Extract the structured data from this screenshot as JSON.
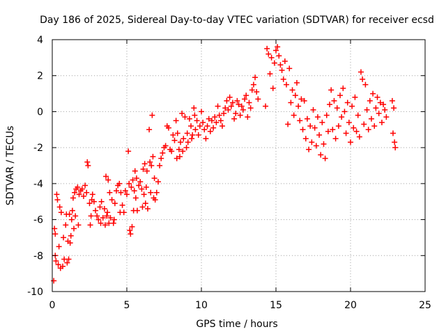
{
  "chart_data": {
    "type": "scatter",
    "title": "Day 186 of 2025, Sidereal Day-to-day VTEC variation (SDTVAR) for receiver ecsd",
    "xlabel": "GPS time / hours",
    "ylabel": "SDTVAR / TECUs",
    "xlim": [
      0,
      25
    ],
    "ylim": [
      -10,
      4
    ],
    "xticks": [
      0,
      5,
      10,
      15,
      20,
      25
    ],
    "yticks": [
      -10,
      -8,
      -6,
      -4,
      -2,
      0,
      2,
      4
    ],
    "grid": true,
    "marker": "plus",
    "marker_color": "#ff0000",
    "grid_color": "#a0a0a0",
    "series": [
      {
        "name": "SDTVAR",
        "points": [
          [
            0.1,
            -9.4
          ],
          [
            0.15,
            -6.5
          ],
          [
            0.2,
            -6.8
          ],
          [
            0.2,
            -8.0
          ],
          [
            0.25,
            -8.3
          ],
          [
            0.3,
            -4.6
          ],
          [
            0.35,
            -4.9
          ],
          [
            0.4,
            -8.5
          ],
          [
            0.45,
            -7.5
          ],
          [
            0.5,
            -5.3
          ],
          [
            0.55,
            -8.7
          ],
          [
            0.6,
            -5.6
          ],
          [
            0.7,
            -8.6
          ],
          [
            0.75,
            -7.0
          ],
          [
            0.8,
            -8.2
          ],
          [
            0.9,
            -6.3
          ],
          [
            0.95,
            -5.7
          ],
          [
            1.0,
            -8.4
          ],
          [
            1.05,
            -7.2
          ],
          [
            1.1,
            -8.2
          ],
          [
            1.15,
            -5.7
          ],
          [
            1.2,
            -7.3
          ],
          [
            1.25,
            -6.9
          ],
          [
            1.3,
            -6.0
          ],
          [
            1.35,
            -5.5
          ],
          [
            1.4,
            -4.8
          ],
          [
            1.45,
            -6.5
          ],
          [
            1.5,
            -4.5
          ],
          [
            1.55,
            -5.8
          ],
          [
            1.6,
            -4.3
          ],
          [
            1.7,
            -4.2
          ],
          [
            1.75,
            -6.3
          ],
          [
            1.8,
            -4.6
          ],
          [
            1.9,
            -4.4
          ],
          [
            2.0,
            -4.3
          ],
          [
            2.1,
            -4.7
          ],
          [
            2.2,
            -4.1
          ],
          [
            2.3,
            -4.5
          ],
          [
            2.35,
            -2.8
          ],
          [
            2.4,
            -3.0
          ],
          [
            2.5,
            -5.1
          ],
          [
            2.55,
            -6.3
          ],
          [
            2.6,
            -5.8
          ],
          [
            2.65,
            -4.9
          ],
          [
            2.7,
            -4.6
          ],
          [
            2.8,
            -5.0
          ],
          [
            2.9,
            -5.5
          ],
          [
            3.0,
            -5.8
          ],
          [
            3.1,
            -6.0
          ],
          [
            3.2,
            -5.3
          ],
          [
            3.25,
            -6.2
          ],
          [
            3.3,
            -5.0
          ],
          [
            3.4,
            -5.9
          ],
          [
            3.5,
            -5.4
          ],
          [
            3.55,
            -6.3
          ],
          [
            3.6,
            -3.6
          ],
          [
            3.65,
            -5.8
          ],
          [
            3.7,
            -5.6
          ],
          [
            3.75,
            -3.8
          ],
          [
            3.8,
            -6.2
          ],
          [
            3.85,
            -4.5
          ],
          [
            3.9,
            -5.9
          ],
          [
            4.0,
            -4.9
          ],
          [
            4.1,
            -6.2
          ],
          [
            4.15,
            -6.0
          ],
          [
            4.2,
            -5.1
          ],
          [
            4.3,
            -4.4
          ],
          [
            4.4,
            -4.1
          ],
          [
            4.5,
            -4.0
          ],
          [
            4.55,
            -5.6
          ],
          [
            4.6,
            -4.5
          ],
          [
            4.7,
            -5.2
          ],
          [
            4.8,
            -5.6
          ],
          [
            4.9,
            -4.4
          ],
          [
            5.0,
            -4.6
          ],
          [
            5.1,
            -2.2
          ],
          [
            5.15,
            -4.0
          ],
          [
            5.2,
            -6.6
          ],
          [
            5.25,
            -6.8
          ],
          [
            5.3,
            -4.2
          ],
          [
            5.35,
            -6.4
          ],
          [
            5.4,
            -3.8
          ],
          [
            5.45,
            -5.5
          ],
          [
            5.5,
            -4.4
          ],
          [
            5.55,
            -3.3
          ],
          [
            5.6,
            -4.8
          ],
          [
            5.65,
            -3.7
          ],
          [
            5.7,
            -5.5
          ],
          [
            5.8,
            -4.1
          ],
          [
            5.9,
            -3.9
          ],
          [
            6.0,
            -4.3
          ],
          [
            6.05,
            -5.3
          ],
          [
            6.1,
            -3.2
          ],
          [
            6.15,
            -4.6
          ],
          [
            6.2,
            -2.9
          ],
          [
            6.25,
            -5.1
          ],
          [
            6.3,
            -4.2
          ],
          [
            6.35,
            -3.3
          ],
          [
            6.4,
            -5.4
          ],
          [
            6.5,
            -1.0
          ],
          [
            6.55,
            -2.8
          ],
          [
            6.6,
            -4.5
          ],
          [
            6.65,
            -3.0
          ],
          [
            6.7,
            -0.2
          ],
          [
            6.75,
            -2.5
          ],
          [
            6.8,
            -4.8
          ],
          [
            6.85,
            -3.7
          ],
          [
            6.9,
            -4.9
          ],
          [
            7.0,
            -4.5
          ],
          [
            7.1,
            -3.9
          ],
          [
            7.2,
            -3.0
          ],
          [
            7.3,
            -2.6
          ],
          [
            7.4,
            -2.3
          ],
          [
            7.5,
            -2.0
          ],
          [
            7.6,
            -1.9
          ],
          [
            7.7,
            -0.8
          ],
          [
            7.8,
            -0.9
          ],
          [
            7.9,
            -2.1
          ],
          [
            8.0,
            -2.2
          ],
          [
            8.1,
            -1.3
          ],
          [
            8.2,
            -1.6
          ],
          [
            8.3,
            -0.5
          ],
          [
            8.35,
            -2.6
          ],
          [
            8.4,
            -1.2
          ],
          [
            8.5,
            -2.1
          ],
          [
            8.55,
            -2.5
          ],
          [
            8.6,
            -1.7
          ],
          [
            8.7,
            -0.1
          ],
          [
            8.75,
            -2.2
          ],
          [
            8.8,
            -1.5
          ],
          [
            8.9,
            -0.3
          ],
          [
            9.0,
            -2.0
          ],
          [
            9.05,
            -1.2
          ],
          [
            9.1,
            -1.7
          ],
          [
            9.2,
            -0.4
          ],
          [
            9.3,
            -0.8
          ],
          [
            9.35,
            -1.5
          ],
          [
            9.4,
            -1.3
          ],
          [
            9.5,
            0.2
          ],
          [
            9.55,
            -0.2
          ],
          [
            9.6,
            -1.0
          ],
          [
            9.7,
            -0.5
          ],
          [
            9.8,
            -1.3
          ],
          [
            9.9,
            -0.8
          ],
          [
            10.0,
            0.0
          ],
          [
            10.1,
            -0.6
          ],
          [
            10.2,
            -1.0
          ],
          [
            10.3,
            -1.5
          ],
          [
            10.4,
            -0.8
          ],
          [
            10.5,
            -0.4
          ],
          [
            10.6,
            -1.1
          ],
          [
            10.7,
            -0.5
          ],
          [
            10.8,
            -0.9
          ],
          [
            10.9,
            -0.3
          ],
          [
            11.0,
            -0.6
          ],
          [
            11.1,
            0.3
          ],
          [
            11.2,
            -0.2
          ],
          [
            11.3,
            -0.5
          ],
          [
            11.4,
            -0.8
          ],
          [
            11.5,
            -0.1
          ],
          [
            11.6,
            0.2
          ],
          [
            11.7,
            0.6
          ],
          [
            11.8,
            0.1
          ],
          [
            11.9,
            0.8
          ],
          [
            12.0,
            0.3
          ],
          [
            12.1,
            0.5
          ],
          [
            12.2,
            -0.4
          ],
          [
            12.3,
            -0.1
          ],
          [
            12.4,
            0.6
          ],
          [
            12.5,
            0.4
          ],
          [
            12.6,
            -0.2
          ],
          [
            12.7,
            0.3
          ],
          [
            12.8,
            0.1
          ],
          [
            12.9,
            0.7
          ],
          [
            13.0,
            0.9
          ],
          [
            13.1,
            -0.3
          ],
          [
            13.2,
            0.5
          ],
          [
            13.3,
            0.2
          ],
          [
            13.4,
            1.2
          ],
          [
            13.5,
            1.5
          ],
          [
            13.6,
            1.9
          ],
          [
            13.7,
            1.1
          ],
          [
            13.8,
            0.7
          ],
          [
            14.3,
            0.3
          ],
          [
            14.4,
            3.5
          ],
          [
            14.5,
            3.2
          ],
          [
            14.6,
            2.1
          ],
          [
            14.7,
            3.0
          ],
          [
            14.8,
            1.3
          ],
          [
            14.9,
            2.7
          ],
          [
            15.0,
            3.4
          ],
          [
            15.1,
            3.6
          ],
          [
            15.2,
            3.1
          ],
          [
            15.3,
            2.6
          ],
          [
            15.4,
            2.3
          ],
          [
            15.5,
            1.8
          ],
          [
            15.6,
            2.8
          ],
          [
            15.7,
            1.5
          ],
          [
            15.8,
            -0.7
          ],
          [
            15.9,
            2.4
          ],
          [
            16.0,
            0.5
          ],
          [
            16.1,
            1.2
          ],
          [
            16.2,
            -0.2
          ],
          [
            16.3,
            0.9
          ],
          [
            16.4,
            1.6
          ],
          [
            16.5,
            0.3
          ],
          [
            16.6,
            -0.5
          ],
          [
            16.7,
            0.7
          ],
          [
            16.8,
            -1.0
          ],
          [
            16.9,
            0.6
          ],
          [
            17.0,
            -1.5
          ],
          [
            17.1,
            -0.4
          ],
          [
            17.2,
            -2.1
          ],
          [
            17.3,
            -0.8
          ],
          [
            17.4,
            -1.7
          ],
          [
            17.5,
            0.1
          ],
          [
            17.6,
            -0.9
          ],
          [
            17.7,
            -1.9
          ],
          [
            17.8,
            -0.3
          ],
          [
            17.9,
            -1.3
          ],
          [
            18.0,
            -2.4
          ],
          [
            18.1,
            -0.6
          ],
          [
            18.2,
            -1.8
          ],
          [
            18.3,
            -2.6
          ],
          [
            18.4,
            -0.2
          ],
          [
            18.5,
            -1.1
          ],
          [
            18.6,
            0.4
          ],
          [
            18.7,
            1.2
          ],
          [
            18.8,
            -1.0
          ],
          [
            18.9,
            0.6
          ],
          [
            19.0,
            -1.5
          ],
          [
            19.1,
            0.2
          ],
          [
            19.2,
            -0.8
          ],
          [
            19.3,
            0.9
          ],
          [
            19.4,
            -0.3
          ],
          [
            19.5,
            1.3
          ],
          [
            19.6,
            0.0
          ],
          [
            19.7,
            -1.2
          ],
          [
            19.8,
            0.5
          ],
          [
            19.9,
            -0.6
          ],
          [
            20.0,
            -1.7
          ],
          [
            20.1,
            0.3
          ],
          [
            20.2,
            -0.9
          ],
          [
            20.3,
            0.8
          ],
          [
            20.4,
            -1.1
          ],
          [
            20.5,
            -0.2
          ],
          [
            20.6,
            -1.4
          ],
          [
            20.7,
            2.2
          ],
          [
            20.8,
            1.8
          ],
          [
            20.9,
            -0.7
          ],
          [
            21.0,
            1.5
          ],
          [
            21.1,
            0.1
          ],
          [
            21.2,
            -1.0
          ],
          [
            21.3,
            0.6
          ],
          [
            21.4,
            -0.4
          ],
          [
            21.5,
            1.0
          ],
          [
            21.6,
            -0.8
          ],
          [
            21.7,
            0.2
          ],
          [
            21.8,
            0.8
          ],
          [
            21.9,
            -0.1
          ],
          [
            22.0,
            0.5
          ],
          [
            22.1,
            -0.6
          ],
          [
            22.2,
            0.4
          ],
          [
            22.3,
            0.1
          ],
          [
            22.4,
            -0.3
          ],
          [
            22.8,
            0.6
          ],
          [
            22.85,
            -1.2
          ],
          [
            22.9,
            0.2
          ],
          [
            22.95,
            -1.7
          ],
          [
            23.0,
            -2.0
          ]
        ]
      }
    ]
  }
}
